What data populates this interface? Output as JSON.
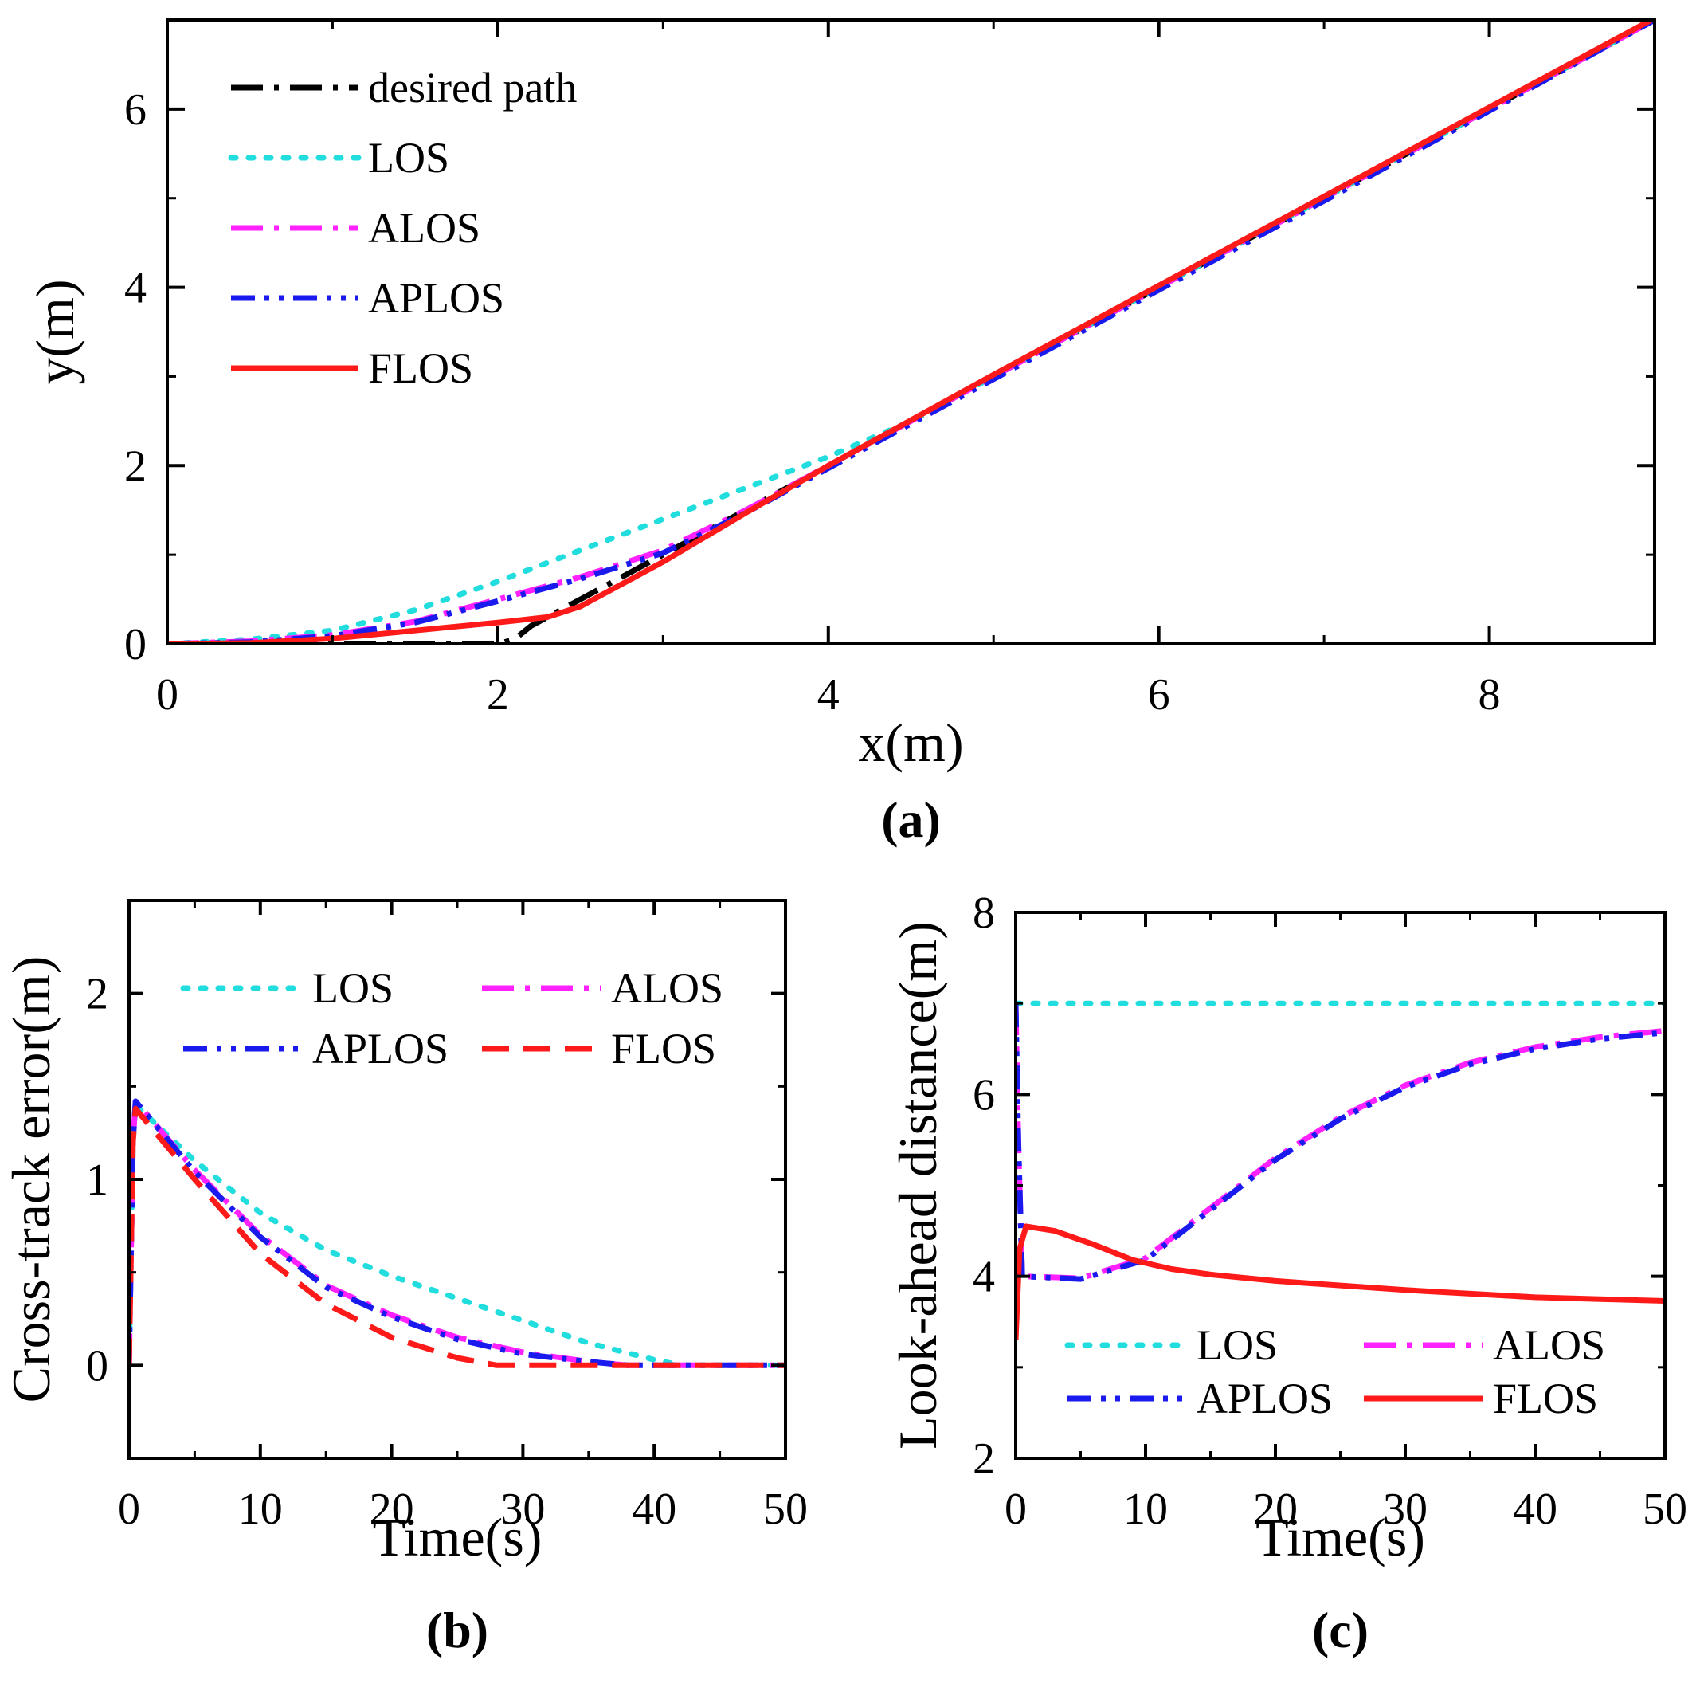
{
  "chart_data": [
    {
      "panel": "a",
      "type": "line",
      "panel_label": "(a)",
      "xlabel": "x(m)",
      "ylabel": "y(m)",
      "xlim": [
        0,
        9
      ],
      "ylim": [
        0,
        7
      ],
      "xticks": [
        "0",
        "2",
        "4",
        "6",
        "8"
      ],
      "yticks": [
        "0",
        "2",
        "4",
        "6"
      ],
      "legend_position": "top-left",
      "series": [
        {
          "name": "desired path",
          "color": "#000000",
          "style": "dash-dot",
          "x": [
            0,
            0.5,
            1.0,
            1.5,
            1.9,
            2.0,
            2.1,
            2.2,
            2.5,
            3.0,
            4.0,
            5.0,
            6.0,
            7.0,
            8.0,
            9.0
          ],
          "y": [
            0,
            0,
            0,
            0,
            0,
            0,
            0.05,
            0.2,
            0.5,
            1.0,
            2.0,
            3.0,
            4.0,
            5.0,
            6.0,
            7.0
          ]
        },
        {
          "name": "LOS",
          "color": "#22dddd",
          "style": "dotted",
          "x": [
            0,
            0.5,
            1.0,
            1.5,
            2.0,
            2.5,
            3.0,
            3.5,
            4.0,
            4.5,
            5.0,
            6.0,
            7.0,
            8.0,
            9.0
          ],
          "y": [
            0,
            0.05,
            0.15,
            0.38,
            0.7,
            1.05,
            1.4,
            1.75,
            2.1,
            2.5,
            3.0,
            4.0,
            5.0,
            6.0,
            7.0
          ]
        },
        {
          "name": "ALOS",
          "color": "#ff22ff",
          "style": "dash-dot",
          "x": [
            0,
            0.5,
            1.0,
            1.5,
            2.0,
            2.5,
            3.0,
            3.5,
            4.0,
            5.0,
            6.0,
            7.0,
            8.0,
            9.0
          ],
          "y": [
            0,
            0.03,
            0.1,
            0.25,
            0.5,
            0.75,
            1.05,
            1.5,
            2.0,
            3.0,
            4.0,
            5.0,
            6.0,
            7.0
          ]
        },
        {
          "name": "APLOS",
          "color": "#1a1aee",
          "style": "dash-dot-dot",
          "x": [
            0,
            0.5,
            1.0,
            1.5,
            2.0,
            2.5,
            3.0,
            3.5,
            4.0,
            5.0,
            6.0,
            7.0,
            8.0,
            9.0
          ],
          "y": [
            0,
            0.02,
            0.09,
            0.24,
            0.48,
            0.73,
            1.02,
            1.47,
            1.97,
            2.97,
            3.97,
            4.97,
            5.98,
            7.0
          ]
        },
        {
          "name": "FLOS",
          "color": "#ff1a1a",
          "style": "solid",
          "x": [
            0,
            0.5,
            1.0,
            1.5,
            2.0,
            2.3,
            2.5,
            3.0,
            3.5,
            4.0,
            5.0,
            6.0,
            7.0,
            8.0,
            9.0
          ],
          "y": [
            0,
            0.01,
            0.06,
            0.15,
            0.24,
            0.3,
            0.42,
            0.92,
            1.47,
            2.0,
            3.02,
            4.02,
            5.02,
            6.02,
            7.02
          ]
        }
      ]
    },
    {
      "panel": "b",
      "type": "line",
      "panel_label": "(b)",
      "xlabel": "Time(s)",
      "ylabel": "Cross-track error(m)",
      "xlim": [
        0,
        50
      ],
      "ylim": [
        -0.5,
        2.5
      ],
      "xticks": [
        "0",
        "10",
        "20",
        "30",
        "40",
        "50"
      ],
      "yticks": [
        "0",
        "1",
        "2"
      ],
      "legend_position": "top",
      "series": [
        {
          "name": "LOS",
          "color": "#22dddd",
          "style": "dotted",
          "x": [
            0,
            0.3,
            0.5,
            5,
            10,
            15,
            20,
            25,
            30,
            35,
            40,
            42,
            50
          ],
          "y": [
            0,
            1.2,
            1.4,
            1.1,
            0.82,
            0.62,
            0.48,
            0.36,
            0.24,
            0.12,
            0.03,
            0,
            0
          ]
        },
        {
          "name": "ALOS",
          "color": "#ff22ff",
          "style": "dash-dot",
          "x": [
            0,
            0.3,
            0.5,
            5,
            10,
            15,
            20,
            25,
            30,
            35,
            38,
            50
          ],
          "y": [
            0,
            1.2,
            1.42,
            1.05,
            0.7,
            0.43,
            0.27,
            0.15,
            0.07,
            0.02,
            0,
            0
          ]
        },
        {
          "name": "APLOS",
          "color": "#1a1aee",
          "style": "dash-dot-dot",
          "x": [
            0,
            0.3,
            0.5,
            5,
            10,
            15,
            20,
            25,
            30,
            35,
            38,
            50
          ],
          "y": [
            0,
            1.2,
            1.42,
            1.04,
            0.69,
            0.42,
            0.26,
            0.14,
            0.06,
            0.02,
            0,
            0
          ]
        },
        {
          "name": "FLOS",
          "color": "#ff1a1a",
          "style": "dashed",
          "x": [
            0,
            0.3,
            0.5,
            5,
            10,
            15,
            20,
            25,
            28,
            30,
            50
          ],
          "y": [
            0,
            1.2,
            1.38,
            1.0,
            0.6,
            0.33,
            0.15,
            0.04,
            0,
            0,
            0
          ]
        }
      ]
    },
    {
      "panel": "c",
      "type": "line",
      "panel_label": "(c)",
      "xlabel": "Time(s)",
      "ylabel": "Look-ahead distance(m)",
      "xlim": [
        0,
        50
      ],
      "ylim": [
        2,
        8
      ],
      "xticks": [
        "0",
        "10",
        "20",
        "30",
        "40",
        "50"
      ],
      "yticks": [
        "2",
        "4",
        "6",
        "8"
      ],
      "legend_position": "bottom",
      "series": [
        {
          "name": "LOS",
          "color": "#22dddd",
          "style": "dotted",
          "x": [
            0,
            0.1,
            50
          ],
          "y": [
            7.0,
            7.0,
            7.0
          ]
        },
        {
          "name": "ALOS",
          "color": "#ff22ff",
          "style": "dash-dot",
          "x": [
            0,
            0.2,
            0.5,
            5,
            10,
            15,
            20,
            25,
            30,
            35,
            40,
            45,
            50
          ],
          "y": [
            7.0,
            5.5,
            4.0,
            3.98,
            4.2,
            4.75,
            5.3,
            5.75,
            6.1,
            6.35,
            6.52,
            6.63,
            6.7
          ]
        },
        {
          "name": "APLOS",
          "color": "#1a1aee",
          "style": "dash-dot-dot",
          "x": [
            0,
            0.2,
            0.5,
            5,
            10,
            15,
            20,
            25,
            30,
            35,
            40,
            45,
            50
          ],
          "y": [
            7.0,
            5.5,
            4.0,
            3.97,
            4.18,
            4.73,
            5.28,
            5.73,
            6.08,
            6.33,
            6.5,
            6.61,
            6.68
          ]
        },
        {
          "name": "FLOS",
          "color": "#ff1a1a",
          "style": "solid",
          "x": [
            0,
            0.3,
            0.8,
            3,
            6,
            9,
            12,
            15,
            20,
            25,
            30,
            35,
            40,
            45,
            50
          ],
          "y": [
            3.3,
            4.3,
            4.55,
            4.5,
            4.35,
            4.18,
            4.08,
            4.02,
            3.95,
            3.9,
            3.85,
            3.81,
            3.77,
            3.75,
            3.73
          ]
        }
      ]
    }
  ]
}
